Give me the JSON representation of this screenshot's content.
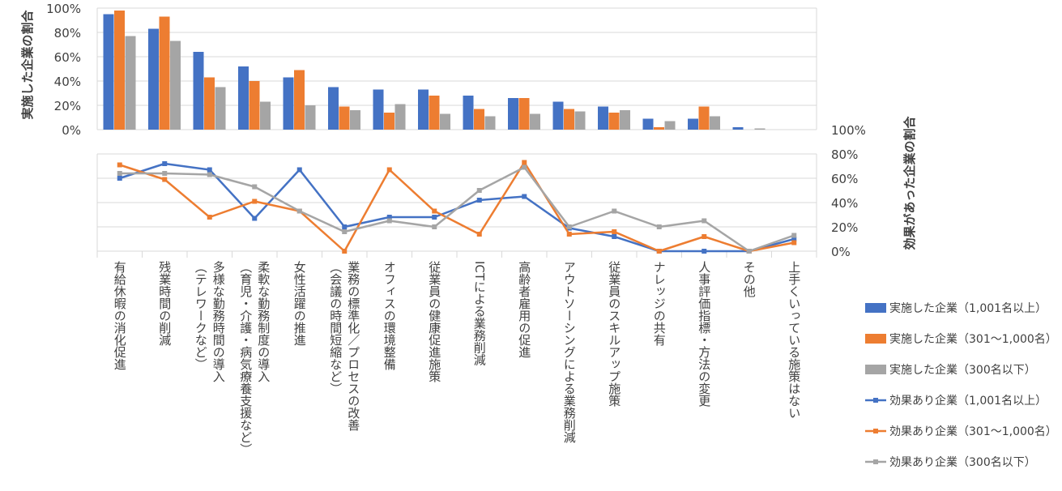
{
  "chart_data": [
    {
      "type": "bar",
      "ylabel": "実施した企業の割合",
      "ylim": [
        0,
        100
      ],
      "yticks": [
        "0%",
        "20%",
        "40%",
        "60%",
        "80%",
        "100%"
      ],
      "categories": [
        "有給休暇の消化促進",
        "残業時間の削減",
        "多様な勤務時間の導入\n（テレワークなど）",
        "柔軟な勤務制度の導入\n（育児・介護・病気療養支援など）",
        "女性活躍の推進",
        "業務の標準化／プロセスの改善\n（会議の時間短縮など）",
        "オフィスの環境整備",
        "従業員の健康促進施策",
        "ICTによる業務削減",
        "高齢者雇用の促進",
        "アウトソーシングによる業務削減",
        "従業員のスキルアップ施策",
        "ナレッジの共有",
        "人事評価指標・方法の変更",
        "その他",
        "上手くいっている施策はない"
      ],
      "series": [
        {
          "name": "実施した企業（1,001名以上）",
          "color": "#4472c4",
          "values": [
            95,
            83,
            64,
            52,
            43,
            35,
            33,
            33,
            28,
            26,
            23,
            19,
            9,
            9,
            2,
            0
          ]
        },
        {
          "name": "実施した企業（301～1,000名）",
          "color": "#ed7d31",
          "values": [
            98,
            93,
            43,
            40,
            49,
            19,
            14,
            28,
            17,
            26,
            17,
            14,
            2,
            19,
            0,
            0
          ]
        },
        {
          "name": "実施した企業（300名以下）",
          "color": "#a5a5a5",
          "values": [
            77,
            73,
            35,
            23,
            20,
            16,
            21,
            13,
            11,
            13,
            15,
            16,
            7,
            11,
            1,
            0
          ]
        }
      ]
    },
    {
      "type": "line",
      "ylabel": "効果があった企業の割合",
      "ylim": [
        0,
        100
      ],
      "yticks": [
        "0%",
        "20%",
        "40%",
        "60%",
        "80%",
        "100%"
      ],
      "series": [
        {
          "name": "効果あり企業（1,001名以上）",
          "color": "#4472c4",
          "values": [
            60,
            72,
            67,
            27,
            67,
            20,
            28,
            28,
            42,
            45,
            19,
            12,
            0,
            0,
            0,
            10
          ]
        },
        {
          "name": "効果あり企業（301～1,000名）",
          "color": "#ed7d31",
          "values": [
            71,
            59,
            28,
            41,
            33,
            0,
            67,
            33,
            14,
            73,
            14,
            16,
            0,
            12,
            0,
            7
          ]
        },
        {
          "name": "効果あり企業（300名以下）",
          "color": "#a5a5a5",
          "values": [
            64,
            64,
            63,
            53,
            33,
            16,
            25,
            20,
            50,
            69,
            20,
            33,
            20,
            25,
            0,
            13
          ]
        }
      ]
    }
  ]
}
